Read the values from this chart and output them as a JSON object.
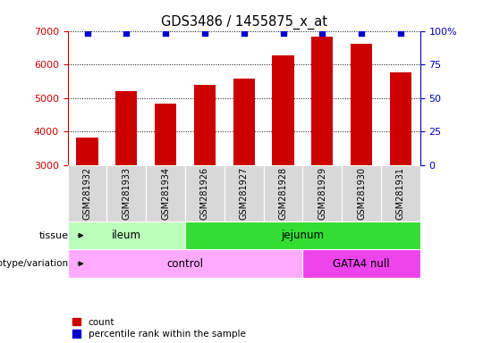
{
  "title": "GDS3486 / 1455875_x_at",
  "categories": [
    "GSM281932",
    "GSM281933",
    "GSM281934",
    "GSM281926",
    "GSM281927",
    "GSM281928",
    "GSM281929",
    "GSM281930",
    "GSM281931"
  ],
  "counts": [
    3820,
    5200,
    4820,
    5400,
    5580,
    6280,
    6840,
    6620,
    5750
  ],
  "ylim_left": [
    3000,
    7000
  ],
  "ylim_right": [
    0,
    100
  ],
  "yticks_left": [
    3000,
    4000,
    5000,
    6000,
    7000
  ],
  "yticks_right": [
    0,
    25,
    50,
    75,
    100
  ],
  "ytick_right_labels": [
    "0",
    "25",
    "50",
    "75",
    "100%"
  ],
  "bar_color": "#cc0000",
  "dot_color": "#0000cc",
  "left_axis_color": "#cc0000",
  "right_axis_color": "#0000bb",
  "tissue_groups": [
    {
      "label": "ileum",
      "start": 0,
      "end": 3,
      "color": "#bbffbb"
    },
    {
      "label": "jejunum",
      "start": 3,
      "end": 9,
      "color": "#33dd33"
    }
  ],
  "genotype_groups": [
    {
      "label": "control",
      "start": 0,
      "end": 6,
      "color": "#ffaaff"
    },
    {
      "label": "GATA4 null",
      "start": 6,
      "end": 9,
      "color": "#ee44ee"
    }
  ],
  "tissue_label": "tissue",
  "genotype_label": "genotype/variation",
  "legend_items": [
    {
      "label": "count",
      "color": "#cc0000"
    },
    {
      "label": "percentile rank within the sample",
      "color": "#0000cc"
    }
  ]
}
